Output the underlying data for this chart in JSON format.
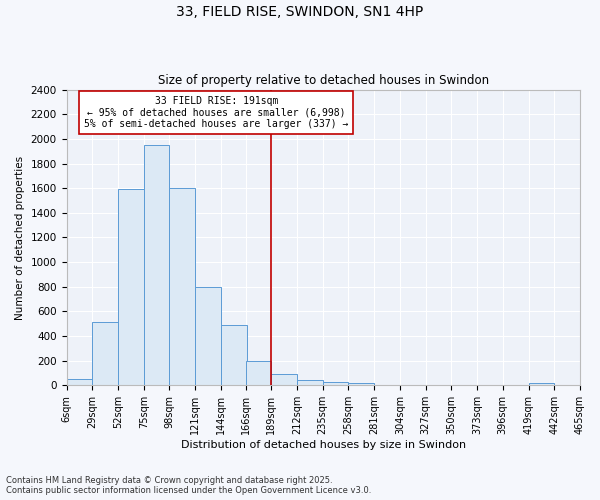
{
  "title_line1": "33, FIELD RISE, SWINDON, SN1 4HP",
  "title_line2": "Size of property relative to detached houses in Swindon",
  "xlabel": "Distribution of detached houses by size in Swindon",
  "ylabel": "Number of detached properties",
  "bin_labels": [
    "6sqm",
    "29sqm",
    "52sqm",
    "75sqm",
    "98sqm",
    "121sqm",
    "144sqm",
    "166sqm",
    "189sqm",
    "212sqm",
    "235sqm",
    "258sqm",
    "281sqm",
    "304sqm",
    "327sqm",
    "350sqm",
    "373sqm",
    "396sqm",
    "419sqm",
    "442sqm",
    "465sqm"
  ],
  "bar_heights": [
    50,
    510,
    1590,
    1950,
    1600,
    800,
    490,
    200,
    90,
    40,
    25,
    15,
    5,
    2,
    2,
    0,
    0,
    0,
    20,
    0
  ],
  "bin_edges_start": [
    6,
    29,
    52,
    75,
    98,
    121,
    144,
    166,
    189,
    212,
    235,
    258,
    281,
    304,
    327,
    350,
    373,
    396,
    419,
    442
  ],
  "bin_width": 23,
  "bar_color": "#dce9f5",
  "bar_edgecolor": "#5b9bd5",
  "vline_x": 189,
  "vline_color": "#c00000",
  "annotation_text": "33 FIELD RISE: 191sqm\n← 95% of detached houses are smaller (6,998)\n5% of semi-detached houses are larger (337) →",
  "annotation_box_color": "#c00000",
  "annotation_text_color": "#000000",
  "ylim": [
    0,
    2400
  ],
  "yticks": [
    0,
    200,
    400,
    600,
    800,
    1000,
    1200,
    1400,
    1600,
    1800,
    2000,
    2200,
    2400
  ],
  "background_color": "#eef2f9",
  "fig_background_color": "#f5f7fc",
  "grid_color": "#ffffff",
  "footer_line1": "Contains HM Land Registry data © Crown copyright and database right 2025.",
  "footer_line2": "Contains public sector information licensed under the Open Government Licence v3.0."
}
